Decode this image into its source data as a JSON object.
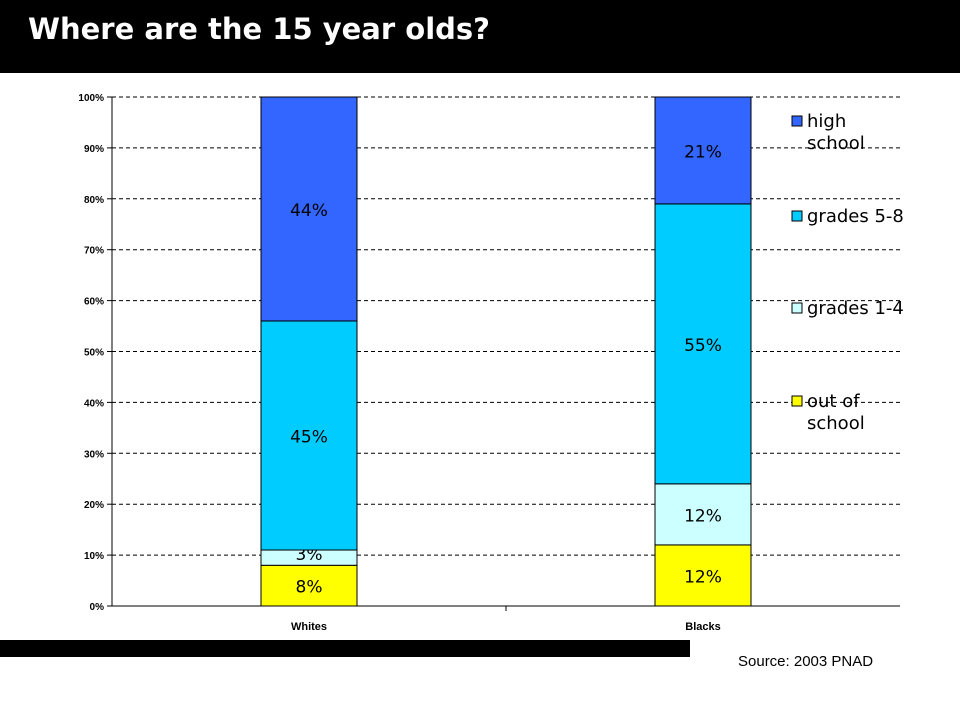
{
  "page": {
    "title": "Where are the 15 year olds?",
    "source": "Source: 2003 PNAD"
  },
  "chart_data": {
    "type": "bar",
    "stacked": true,
    "categories": [
      "Whites",
      "Blacks"
    ],
    "series": [
      {
        "name": "out of school",
        "values": [
          8,
          12
        ],
        "labels": [
          "8%",
          "12%"
        ],
        "color": "#FFFF00"
      },
      {
        "name": "grades 1-4",
        "values": [
          3,
          12
        ],
        "labels": [
          "3%",
          "12%"
        ],
        "color": "#CCFFFF"
      },
      {
        "name": "grades 5-8",
        "values": [
          45,
          55
        ],
        "labels": [
          "45%",
          "55%"
        ],
        "color": "#00CCFF"
      },
      {
        "name": "high school",
        "values": [
          44,
          21
        ],
        "labels": [
          "44%",
          "21%"
        ],
        "color": "#3366FF"
      }
    ],
    "yticks": [
      "0%",
      "10%",
      "20%",
      "30%",
      "40%",
      "50%",
      "60%",
      "70%",
      "80%",
      "90%",
      "100%"
    ],
    "ylim": [
      0,
      100
    ],
    "grid": true,
    "legend_position": "right",
    "legend": [
      {
        "lines": [
          "high",
          "school"
        ],
        "color": "#3366FF"
      },
      {
        "lines": [
          "grades 5-8"
        ],
        "color": "#00CCFF"
      },
      {
        "lines": [
          "grades 1-4"
        ],
        "color": "#CCFFFF"
      },
      {
        "lines": [
          "out of",
          "school"
        ],
        "color": "#FFFF00"
      }
    ]
  }
}
